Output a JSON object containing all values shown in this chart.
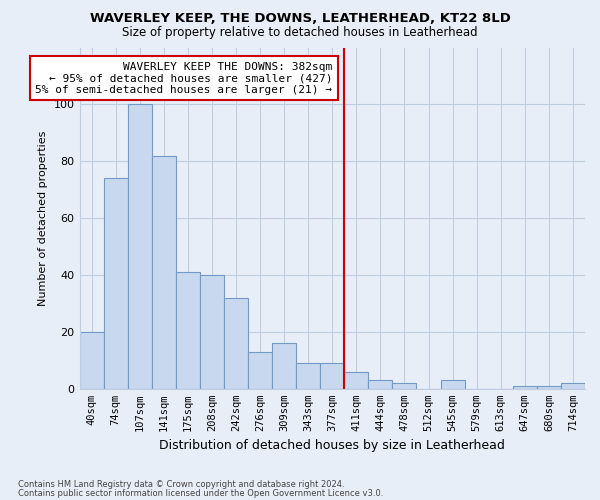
{
  "title": "WAVERLEY KEEP, THE DOWNS, LEATHERHEAD, KT22 8LD",
  "subtitle": "Size of property relative to detached houses in Leatherhead",
  "xlabel": "Distribution of detached houses by size in Leatherhead",
  "ylabel": "Number of detached properties",
  "footnote1": "Contains HM Land Registry data © Crown copyright and database right 2024.",
  "footnote2": "Contains public sector information licensed under the Open Government Licence v3.0.",
  "categories": [
    "40sqm",
    "74sqm",
    "107sqm",
    "141sqm",
    "175sqm",
    "208sqm",
    "242sqm",
    "276sqm",
    "309sqm",
    "343sqm",
    "377sqm",
    "411sqm",
    "444sqm",
    "478sqm",
    "512sqm",
    "545sqm",
    "579sqm",
    "613sqm",
    "647sqm",
    "680sqm",
    "714sqm"
  ],
  "values": [
    20,
    74,
    100,
    82,
    41,
    40,
    32,
    13,
    16,
    9,
    9,
    6,
    3,
    2,
    0,
    3,
    0,
    0,
    1,
    1,
    2
  ],
  "bar_facecolor": "#c8d8ee",
  "bar_edgecolor": "#7399c6",
  "property_line_x": 10.5,
  "property_line_color": "#cc0000",
  "annotation_box_text": "WAVERLEY KEEP THE DOWNS: 382sqm\n← 95% of detached houses are smaller (427)\n5% of semi-detached houses are larger (21) →",
  "annotation_box_color": "#cc0000",
  "ylim": [
    0,
    120
  ],
  "yticks": [
    0,
    20,
    40,
    60,
    80,
    100
  ],
  "background_color": "#e8eef8",
  "grid_color": "#c0cce0",
  "bar_width": 1.0
}
